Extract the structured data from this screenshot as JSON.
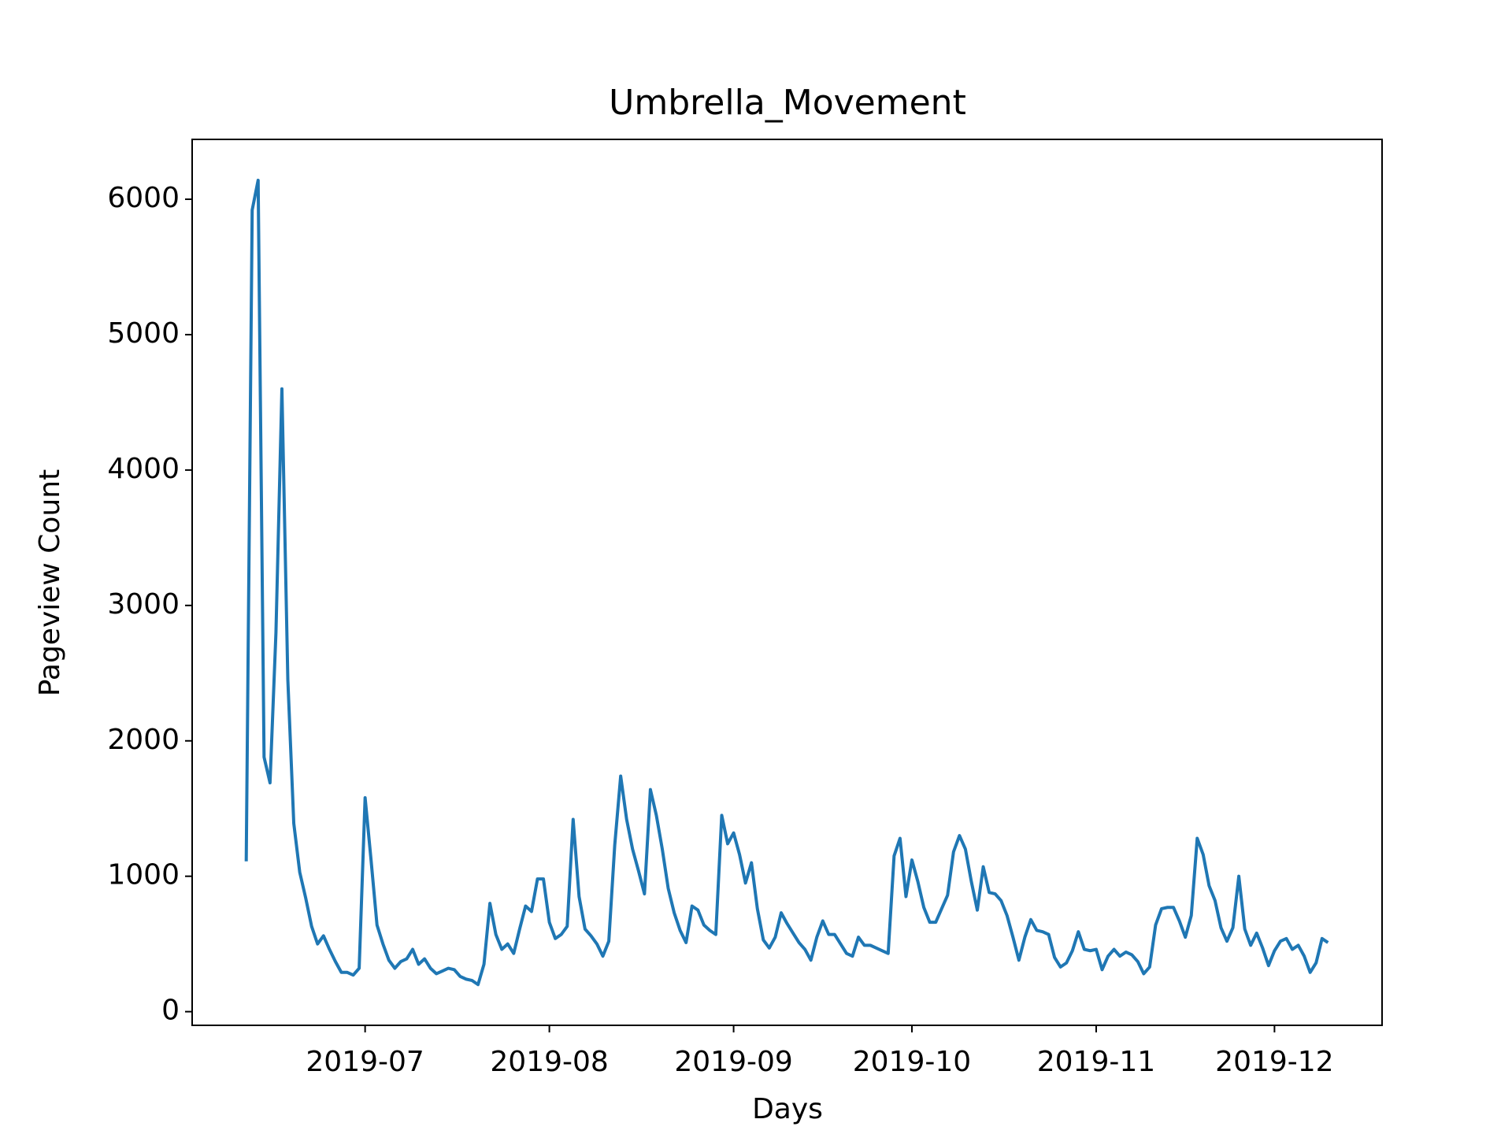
{
  "chart_data": {
    "type": "line",
    "title": "Umbrella_Movement",
    "xlabel": "Days",
    "ylabel": "Pageview Count",
    "color": "#1f77b4",
    "values": [
      1110,
      5920,
      6140,
      1880,
      1690,
      2800,
      4600,
      2450,
      1390,
      1030,
      840,
      630,
      500,
      560,
      460,
      370,
      290,
      290,
      270,
      320,
      1580,
      1120,
      640,
      500,
      380,
      320,
      370,
      390,
      460,
      350,
      390,
      320,
      280,
      300,
      320,
      310,
      260,
      240,
      230,
      200,
      350,
      800,
      570,
      460,
      500,
      430,
      610,
      780,
      740,
      980,
      980,
      660,
      540,
      570,
      630,
      1420,
      850,
      610,
      560,
      500,
      410,
      520,
      1230,
      1740,
      1420,
      1200,
      1040,
      870,
      1640,
      1450,
      1200,
      910,
      730,
      600,
      510,
      780,
      750,
      640,
      600,
      570,
      1450,
      1240,
      1320,
      1160,
      950,
      1100,
      760,
      530,
      470,
      550,
      730,
      650,
      580,
      510,
      460,
      380,
      550,
      670,
      570,
      570,
      500,
      430,
      410,
      550,
      490,
      490,
      470,
      450,
      430,
      1150,
      1280,
      850,
      1120,
      960,
      770,
      660,
      660,
      760,
      860,
      1180,
      1300,
      1200,
      960,
      750,
      1070,
      880,
      870,
      820,
      710,
      550,
      380,
      550,
      680,
      600,
      590,
      570,
      400,
      330,
      360,
      450,
      590,
      460,
      450,
      460,
      310,
      410,
      460,
      410,
      440,
      420,
      370,
      280,
      330,
      640,
      760,
      770,
      770,
      670,
      550,
      710,
      1280,
      1160,
      930,
      820,
      620,
      520,
      620,
      1000,
      610,
      490,
      580,
      470,
      340,
      450,
      520,
      540,
      460,
      490,
      410,
      290,
      360,
      540,
      510
    ],
    "xlim": [
      -9.1,
      191.1
    ],
    "xticks": [
      {
        "value": 20,
        "label": "2019-07"
      },
      {
        "value": 51,
        "label": "2019-08"
      },
      {
        "value": 82,
        "label": "2019-09"
      },
      {
        "value": 112,
        "label": "2019-10"
      },
      {
        "value": 143,
        "label": "2019-11"
      },
      {
        "value": 173,
        "label": "2019-12"
      }
    ],
    "ylim": [
      -101,
      6442
    ],
    "yticks": [
      0,
      1000,
      2000,
      3000,
      4000,
      5000,
      6000
    ]
  }
}
